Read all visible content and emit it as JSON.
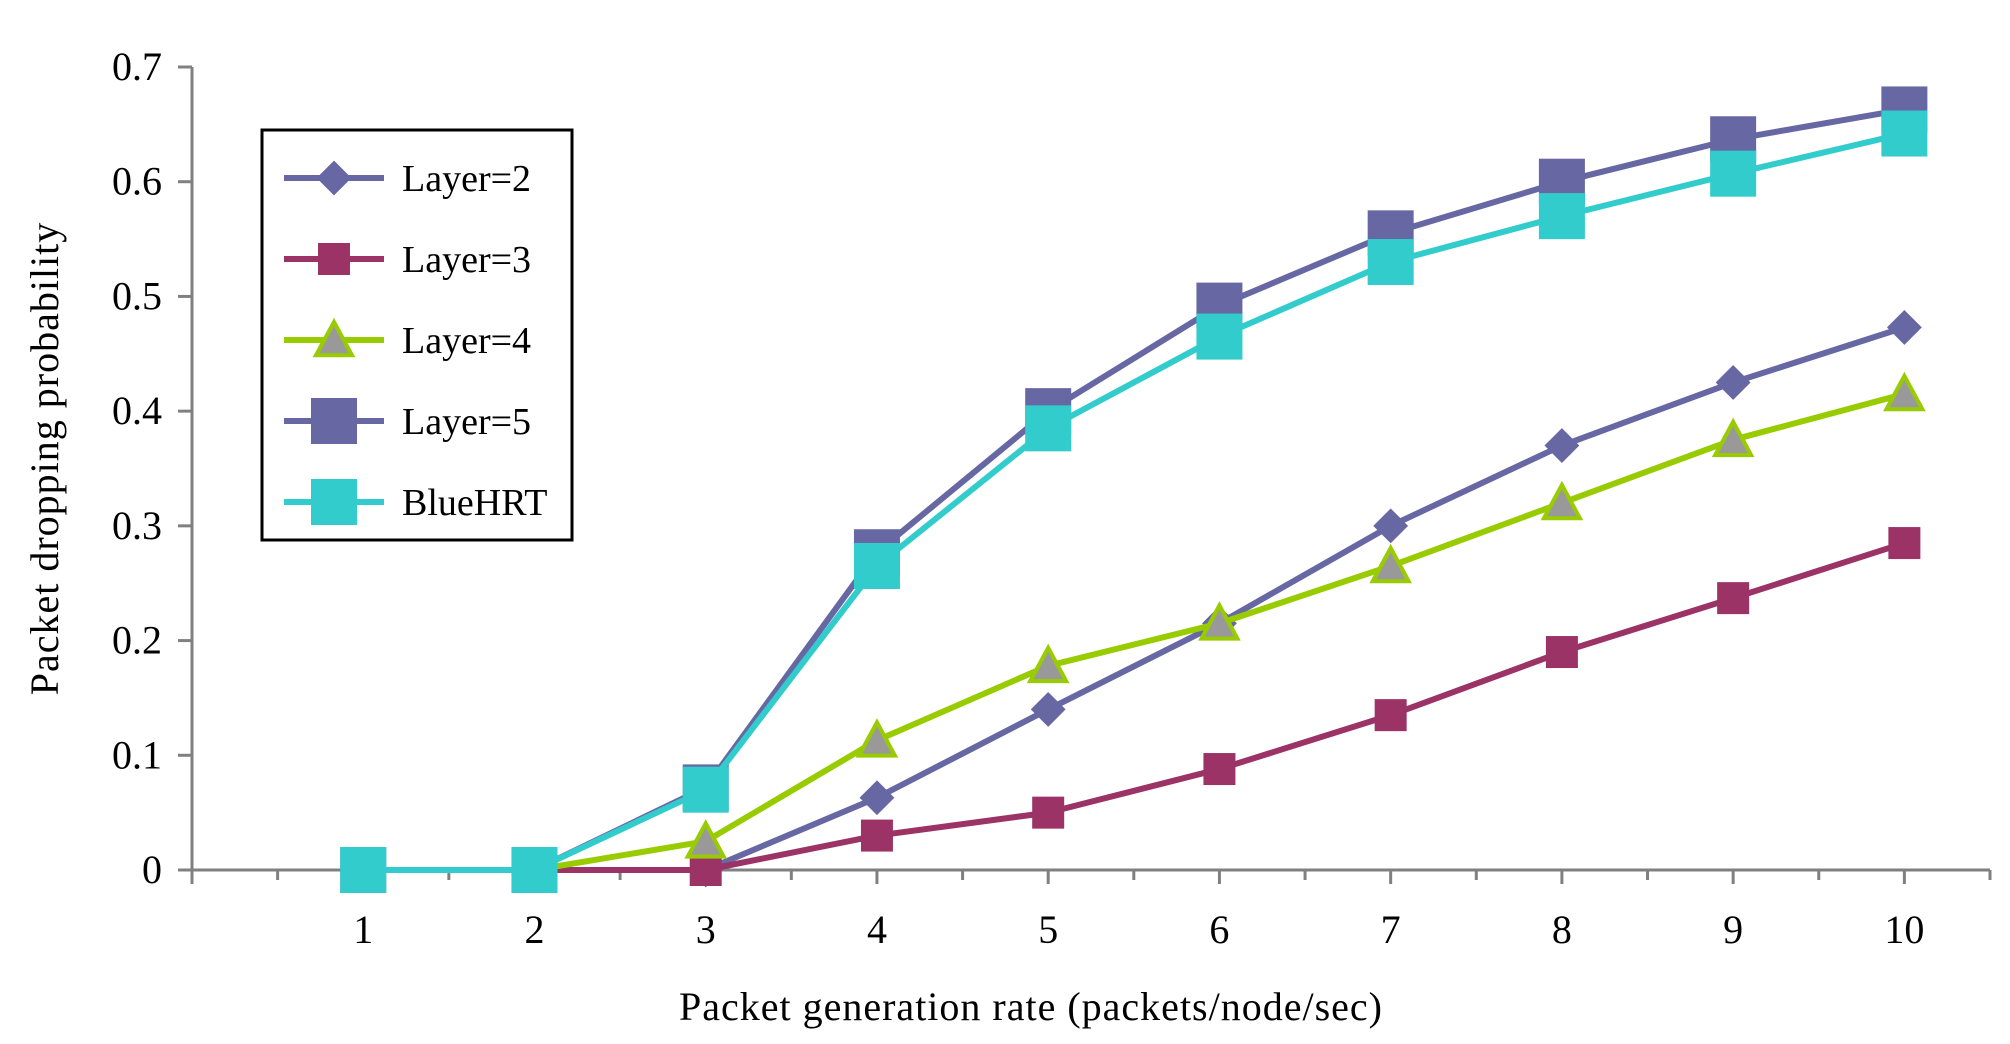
{
  "chart_data": {
    "type": "line",
    "title": "",
    "xlabel": "Packet generation rate (packets/node/sec)",
    "ylabel": "Packet dropping probability",
    "x": [
      1,
      2,
      3,
      4,
      5,
      6,
      7,
      8,
      9,
      10
    ],
    "xlim": [
      0,
      10.5
    ],
    "ylim": [
      0,
      0.7
    ],
    "yticks": [
      "0",
      "0.1",
      "0.2",
      "0.3",
      "0.4",
      "0.5",
      "0.6",
      "0.7"
    ],
    "xticks": [
      "1",
      "2",
      "3",
      "4",
      "5",
      "6",
      "7",
      "8",
      "9",
      "10"
    ],
    "grid": false,
    "legend_position": "top-left",
    "series": [
      {
        "name": "Layer=2",
        "marker": "diamond",
        "color": "#6767a3",
        "markerColor": "#6767a3",
        "values": [
          0,
          0,
          0,
          0.063,
          0.14,
          0.215,
          0.3,
          0.37,
          0.425,
          0.473
        ]
      },
      {
        "name": "Layer=3",
        "marker": "square",
        "color": "#9c3366",
        "markerColor": "#9c3366",
        "values": [
          0,
          0,
          0,
          0.03,
          0.05,
          0.088,
          0.135,
          0.19,
          0.237,
          0.285
        ]
      },
      {
        "name": "Layer=4",
        "marker": "triangle",
        "color": "#99cc00",
        "markerColor": "#999999",
        "values": [
          0,
          0,
          0.025,
          0.113,
          0.178,
          0.215,
          0.265,
          0.32,
          0.375,
          0.415
        ]
      },
      {
        "name": "Layer=5",
        "marker": "square-large",
        "color": "#6767a3",
        "markerColor": "#6767a3",
        "values": [
          0,
          0,
          0.072,
          0.277,
          0.4,
          0.492,
          0.555,
          0.6,
          0.637,
          0.663
        ]
      },
      {
        "name": "BlueHRT",
        "marker": "square-large",
        "color": "#33cccc",
        "markerColor": "#33cccc",
        "values": [
          0,
          0,
          0.07,
          0.265,
          0.385,
          0.465,
          0.53,
          0.57,
          0.607,
          0.642
        ]
      }
    ]
  }
}
